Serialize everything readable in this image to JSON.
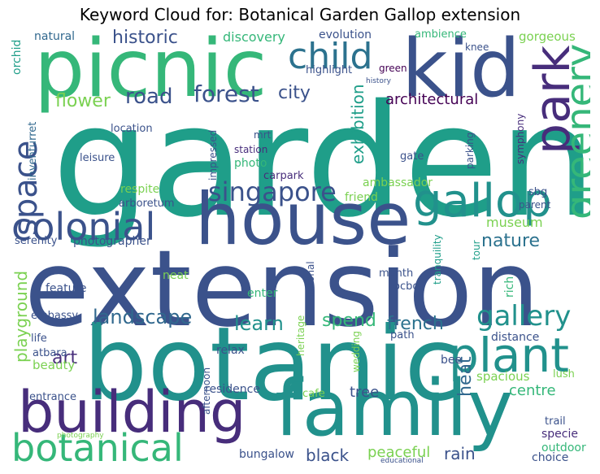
{
  "title": "Keyword Cloud for: Botanical Garden Gallop extension",
  "colors": {
    "teal": "#21918c",
    "green": "#35b779",
    "lime": "#7ad151",
    "yellow": "#fde725",
    "navy": "#3b528b",
    "purple": "#472d7b",
    "dark": "#440154",
    "blue": "#31688e",
    "cyan": "#1f9e89",
    "slate": "#2c728e"
  },
  "words": [
    {
      "text": "garden",
      "color": "#1f9e89"
    },
    {
      "text": "extension",
      "color": "#3b528b"
    },
    {
      "text": "botanic",
      "color": "#21918c"
    },
    {
      "text": "picnic",
      "color": "#35b779"
    },
    {
      "text": "house",
      "color": "#3b528b"
    },
    {
      "text": "kid",
      "color": "#3b528b"
    },
    {
      "text": "family",
      "color": "#21918c"
    },
    {
      "text": "building",
      "color": "#472d7b"
    },
    {
      "text": "botanical",
      "color": "#35b779"
    },
    {
      "text": "colonial",
      "color": "#3b528b"
    },
    {
      "text": "gallop",
      "color": "#21918c"
    },
    {
      "text": "plant",
      "color": "#21918c"
    },
    {
      "text": "park",
      "color": "#472d7b"
    },
    {
      "text": "greenery",
      "color": "#35b779"
    },
    {
      "text": "child",
      "color": "#2c728e"
    },
    {
      "text": "space",
      "color": "#3b528b"
    },
    {
      "text": "singapore",
      "color": "#3b528b"
    },
    {
      "text": "forest",
      "color": "#3b528b"
    },
    {
      "text": "road",
      "color": "#3b528b"
    },
    {
      "text": "gallery",
      "color": "#21918c"
    },
    {
      "text": "historic",
      "color": "#3b528b"
    },
    {
      "text": "flower",
      "color": "#7ad151"
    },
    {
      "text": "city",
      "color": "#3b528b"
    },
    {
      "text": "architectural",
      "color": "#440154"
    },
    {
      "text": "exhibition",
      "color": "#1f9e89"
    },
    {
      "text": "nature",
      "color": "#2c728e"
    },
    {
      "text": "museum",
      "color": "#7ad151"
    },
    {
      "text": "landscape",
      "color": "#31688e"
    },
    {
      "text": "learn",
      "color": "#21918c"
    },
    {
      "text": "spend",
      "color": "#35b779"
    },
    {
      "text": "french",
      "color": "#2c728e"
    },
    {
      "text": "playground",
      "color": "#7ad151"
    },
    {
      "text": "heat",
      "color": "#31688e"
    },
    {
      "text": "art",
      "color": "#472d7b"
    },
    {
      "text": "tree",
      "color": "#3b528b"
    },
    {
      "text": "centre",
      "color": "#35b779"
    },
    {
      "text": "black",
      "color": "#3b528b"
    },
    {
      "text": "rain",
      "color": "#3b528b"
    },
    {
      "text": "peaceful",
      "color": "#7ad151"
    },
    {
      "text": "discovery",
      "color": "#35b779"
    },
    {
      "text": "natural",
      "color": "#31688e"
    },
    {
      "text": "orchid",
      "color": "#1f9e89"
    },
    {
      "text": "evolution",
      "color": "#3b528b"
    },
    {
      "text": "ambience",
      "color": "#35b779"
    },
    {
      "text": "gorgeous",
      "color": "#7ad151"
    },
    {
      "text": "knee",
      "color": "#3b528b"
    },
    {
      "text": "highlight",
      "color": "#3b528b"
    },
    {
      "text": "green",
      "color": "#440154"
    },
    {
      "text": "history",
      "color": "#3b528b"
    },
    {
      "text": "inventurret",
      "color": "#31688e"
    },
    {
      "text": "location",
      "color": "#3b528b"
    },
    {
      "text": "impressed",
      "color": "#3b528b"
    },
    {
      "text": "mrt",
      "color": "#3b528b"
    },
    {
      "text": "station",
      "color": "#472d7b"
    },
    {
      "text": "symphony",
      "color": "#472d7b"
    },
    {
      "text": "leisure",
      "color": "#3b528b"
    },
    {
      "text": "photo",
      "color": "#35b779"
    },
    {
      "text": "carpark",
      "color": "#472d7b"
    },
    {
      "text": "gate",
      "color": "#3b528b"
    },
    {
      "text": "parking",
      "color": "#3b528b"
    },
    {
      "text": "respite",
      "color": "#7ad151"
    },
    {
      "text": "ambassador",
      "color": "#7ad151"
    },
    {
      "text": "sbg",
      "color": "#3b528b"
    },
    {
      "text": "friend",
      "color": "#7ad151"
    },
    {
      "text": "parent",
      "color": "#3b528b"
    },
    {
      "text": "arboretum",
      "color": "#3b528b"
    },
    {
      "text": "serenity",
      "color": "#3b528b"
    },
    {
      "text": "photographer",
      "color": "#3b528b"
    },
    {
      "text": "tour",
      "color": "#1f9e89"
    },
    {
      "text": "tranquility",
      "color": "#1f9e89"
    },
    {
      "text": "neat",
      "color": "#7ad151"
    },
    {
      "text": "month",
      "color": "#3b528b"
    },
    {
      "text": "ocbc",
      "color": "#3b528b"
    },
    {
      "text": "rich",
      "color": "#35b779"
    },
    {
      "text": "feature",
      "color": "#3b528b"
    },
    {
      "text": "enter",
      "color": "#35b779"
    },
    {
      "text": "national",
      "color": "#3b528b"
    },
    {
      "text": "embassy",
      "color": "#3b528b"
    },
    {
      "text": "life",
      "color": "#3b528b"
    },
    {
      "text": "distance",
      "color": "#3b528b"
    },
    {
      "text": "atbara",
      "color": "#3b528b"
    },
    {
      "text": "relax",
      "color": "#3b528b"
    },
    {
      "text": "path",
      "color": "#3b528b"
    },
    {
      "text": "beauty",
      "color": "#7ad151"
    },
    {
      "text": "heritage",
      "color": "#7ad151"
    },
    {
      "text": "wedding",
      "color": "#7ad151"
    },
    {
      "text": "bee",
      "color": "#3b528b"
    },
    {
      "text": "spacious",
      "color": "#7ad151"
    },
    {
      "text": "lush",
      "color": "#7ad151"
    },
    {
      "text": "afternoon",
      "color": "#3b528b"
    },
    {
      "text": "residence",
      "color": "#3b528b"
    },
    {
      "text": "entrance",
      "color": "#3b528b"
    },
    {
      "text": "cafe",
      "color": "#7ad151"
    },
    {
      "text": "trail",
      "color": "#3b528b"
    },
    {
      "text": "specie",
      "color": "#472d7b"
    },
    {
      "text": "photography",
      "color": "#7ad151"
    },
    {
      "text": "bungalow",
      "color": "#3b528b"
    },
    {
      "text": "outdoor",
      "color": "#35b779"
    },
    {
      "text": "educational",
      "color": "#3b528b"
    },
    {
      "text": "choice",
      "color": "#3b528b"
    }
  ]
}
